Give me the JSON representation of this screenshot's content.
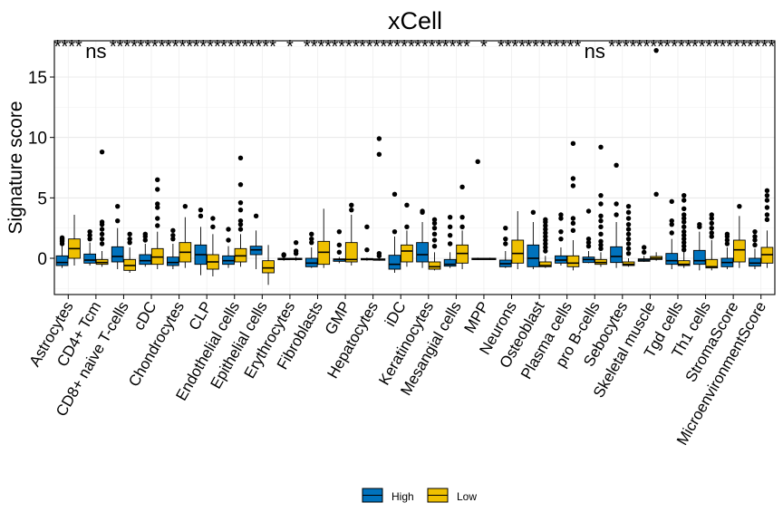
{
  "chart_data": {
    "type": "boxplot",
    "title": "xCell",
    "xlabel": "",
    "ylabel": "Signature score",
    "ylim": [
      -3,
      18
    ],
    "yticks": [
      0,
      5,
      10,
      15
    ],
    "grid": true,
    "legend": {
      "placement": "bottom",
      "entries": [
        "High",
        "Low"
      ]
    },
    "colors": {
      "High": "#0072BD",
      "Low": "#EFC000"
    },
    "categories": [
      "Astrocytes",
      "CD4+ Tcm",
      "CD8+ naive T-cells",
      "cDC",
      "Chondrocytes",
      "CLP",
      "Endothelial cells",
      "Epithelial cells",
      "Erythrocytes",
      "Fibroblasts",
      "GMP",
      "Hepatocytes",
      "iDC",
      "Keratinocytes",
      "Mesangial cells",
      "MPP",
      "Neurons",
      "Osteoblast",
      "Plasma cells",
      "pro B-cells",
      "Sebocytes",
      "Skeletal muscle",
      "Tgd cells",
      "Th1 cells",
      "StromaScore",
      "MicroenvironmentScore"
    ],
    "significance": [
      "****",
      "ns",
      "****",
      "****",
      "****",
      "****",
      "****",
      "****",
      "*",
      "****",
      "****",
      "****",
      "****",
      "****",
      "****",
      "*",
      "****",
      "****",
      "****",
      "ns",
      "****",
      "****",
      "****",
      "****",
      "****",
      "****"
    ],
    "series": [
      {
        "name": "High",
        "boxes": [
          {
            "min": -0.8,
            "q1": -0.6,
            "median": -0.35,
            "q3": 0.2,
            "max": 1.0,
            "outliers": [
              1.2,
              1.4,
              1.5,
              1.6,
              1.7
            ]
          },
          {
            "min": -0.6,
            "q1": -0.4,
            "median": -0.15,
            "q3": 0.35,
            "max": 1.3,
            "outliers": [
              1.6,
              1.9,
              2.2
            ]
          },
          {
            "min": -0.9,
            "q1": -0.3,
            "median": 0.15,
            "q3": 0.95,
            "max": 2.5,
            "outliers": [
              3.1,
              4.3
            ]
          },
          {
            "min": -0.7,
            "q1": -0.5,
            "median": -0.2,
            "q3": 0.3,
            "max": 1.2,
            "outliers": [
              1.5,
              1.8,
              2.0
            ]
          },
          {
            "min": -0.9,
            "q1": -0.6,
            "median": -0.35,
            "q3": 0.1,
            "max": 1.2,
            "outliers": [
              1.6,
              1.9,
              2.3
            ]
          },
          {
            "min": -1.4,
            "q1": -0.5,
            "median": 0.3,
            "q3": 1.1,
            "max": 2.6,
            "outliers": [
              3.5,
              4.0
            ]
          },
          {
            "min": -0.8,
            "q1": -0.5,
            "median": -0.2,
            "q3": 0.2,
            "max": 1.0,
            "outliers": [
              1.5,
              2.4
            ]
          },
          {
            "min": -0.9,
            "q1": 0.3,
            "median": 0.7,
            "q3": 1.0,
            "max": 2.3,
            "outliers": [
              3.5
            ]
          },
          {
            "min": -0.2,
            "q1": -0.12,
            "median": -0.05,
            "q3": 0.0,
            "max": 0.1,
            "outliers": [
              0.25,
              0.3
            ]
          },
          {
            "min": -0.8,
            "q1": -0.7,
            "median": -0.4,
            "q3": 0.0,
            "max": 0.9,
            "outliers": [
              1.3,
              1.6,
              2.0
            ]
          },
          {
            "min": -0.4,
            "q1": -0.25,
            "median": -0.1,
            "q3": -0.05,
            "max": 0.1,
            "outliers": [
              0.5,
              1.1,
              2.2
            ]
          },
          {
            "min": -0.2,
            "q1": -0.12,
            "median": -0.06,
            "q3": -0.02,
            "max": 0.05,
            "outliers": [
              0.7,
              2.6
            ]
          },
          {
            "min": -1.2,
            "q1": -0.9,
            "median": -0.5,
            "q3": 0.25,
            "max": 1.8,
            "outliers": [
              2.2,
              5.3
            ]
          },
          {
            "min": -0.8,
            "q1": -0.3,
            "median": 0.3,
            "q3": 1.3,
            "max": 3.0,
            "outliers": [
              3.8,
              3.9
            ]
          },
          {
            "min": -0.8,
            "q1": -0.65,
            "median": -0.5,
            "q3": -0.1,
            "max": 0.5,
            "outliers": [
              1.2,
              1.9,
              2.6,
              3.4
            ]
          },
          {
            "min": -0.15,
            "q1": -0.1,
            "median": -0.05,
            "q3": 0.0,
            "max": 0.05,
            "outliers": [
              8.0
            ]
          },
          {
            "min": -0.8,
            "q1": -0.7,
            "median": -0.45,
            "q3": -0.15,
            "max": 0.6,
            "outliers": [
              1.2,
              1.6,
              2.5
            ]
          },
          {
            "min": -0.9,
            "q1": -0.7,
            "median": 0.0,
            "q3": 1.1,
            "max": 3.0,
            "outliers": [
              3.8
            ]
          },
          {
            "min": -0.6,
            "q1": -0.4,
            "median": -0.15,
            "q3": 0.2,
            "max": 0.9,
            "outliers": [
              1.6,
              2.2,
              3.3,
              3.6
            ]
          },
          {
            "min": -0.4,
            "q1": -0.35,
            "median": -0.1,
            "q3": 0.1,
            "max": 0.6,
            "outliers": [
              1.0,
              1.3,
              1.6,
              3.9
            ]
          },
          {
            "min": -0.8,
            "q1": -0.35,
            "median": 0.15,
            "q3": 0.95,
            "max": 3.0,
            "outliers": [
              3.6,
              4.5,
              7.7
            ]
          },
          {
            "min": -0.3,
            "q1": -0.25,
            "median": -0.15,
            "q3": -0.05,
            "max": 0.2,
            "outliers": [
              0.5,
              0.9
            ]
          },
          {
            "min": -0.9,
            "q1": -0.5,
            "median": -0.2,
            "q3": 0.4,
            "max": 1.6,
            "outliers": [
              2.1,
              2.8,
              3.1,
              4.7
            ]
          },
          {
            "min": -1.0,
            "q1": -0.5,
            "median": -0.2,
            "q3": 0.65,
            "max": 2.2,
            "outliers": [
              2.6,
              2.8
            ]
          },
          {
            "min": -0.9,
            "q1": -0.7,
            "median": -0.35,
            "q3": 0.0,
            "max": 0.9,
            "outliers": [
              1.2,
              1.5,
              1.8,
              2.0
            ]
          },
          {
            "min": -0.9,
            "q1": -0.65,
            "median": -0.4,
            "q3": 0.0,
            "max": 0.8,
            "outliers": [
              1.1,
              1.5,
              1.8,
              2.2
            ]
          }
        ]
      },
      {
        "name": "Low",
        "boxes": [
          {
            "min": -0.6,
            "q1": 0.0,
            "median": 0.8,
            "q3": 1.6,
            "max": 3.6,
            "outliers": []
          },
          {
            "min": -0.7,
            "q1": -0.5,
            "median": -0.35,
            "q3": -0.1,
            "max": 0.6,
            "outliers": [
              1.2,
              1.6,
              2.0,
              2.4,
              2.8,
              3.0,
              8.8
            ]
          },
          {
            "min": -1.2,
            "q1": -1.0,
            "median": -0.6,
            "q3": -0.1,
            "max": 0.9,
            "outliers": [
              1.3,
              1.6,
              2.0
            ]
          },
          {
            "min": -0.9,
            "q1": -0.5,
            "median": 0.1,
            "q3": 0.8,
            "max": 2.2,
            "outliers": [
              2.7,
              3.3,
              4.2,
              4.5,
              5.7,
              6.5
            ]
          },
          {
            "min": -0.8,
            "q1": -0.3,
            "median": 0.5,
            "q3": 1.3,
            "max": 3.4,
            "outliers": [
              4.3
            ]
          },
          {
            "min": -1.5,
            "q1": -0.9,
            "median": -0.3,
            "q3": 0.3,
            "max": 2.0,
            "outliers": [
              2.6,
              3.3
            ]
          },
          {
            "min": -0.7,
            "q1": -0.3,
            "median": 0.2,
            "q3": 0.8,
            "max": 2.0,
            "outliers": [
              2.4,
              2.8,
              3.1,
              4.0,
              4.6,
              6.1,
              8.3
            ]
          },
          {
            "min": -2.2,
            "q1": -1.2,
            "median": -0.8,
            "q3": -0.2,
            "max": 1.1,
            "outliers": []
          },
          {
            "min": -0.2,
            "q1": -0.1,
            "median": -0.05,
            "q3": 0.0,
            "max": 0.1,
            "outliers": [
              0.4,
              0.6,
              1.3
            ]
          },
          {
            "min": -0.8,
            "q1": -0.5,
            "median": 0.5,
            "q3": 1.4,
            "max": 4.1,
            "outliers": []
          },
          {
            "min": -0.6,
            "q1": -0.3,
            "median": -0.1,
            "q3": 1.3,
            "max": 3.6,
            "outliers": [
              4.0,
              4.4
            ]
          },
          {
            "min": -0.2,
            "q1": -0.15,
            "median": -0.1,
            "q3": -0.05,
            "max": 0.05,
            "outliers": [
              0.2,
              0.4,
              8.6,
              9.9
            ]
          },
          {
            "min": -0.7,
            "q1": -0.3,
            "median": 0.6,
            "q3": 1.1,
            "max": 2.3,
            "outliers": [
              2.6,
              4.4
            ]
          },
          {
            "min": -1.0,
            "q1": -0.9,
            "median": -0.7,
            "q3": -0.3,
            "max": 0.5,
            "outliers": [
              1.0,
              1.5,
              2.0,
              2.5,
              2.9,
              3.2
            ]
          },
          {
            "min": -0.9,
            "q1": -0.4,
            "median": 0.4,
            "q3": 1.1,
            "max": 2.3,
            "outliers": [
              2.6,
              3.4,
              5.9
            ]
          },
          {
            "min": -0.15,
            "q1": -0.1,
            "median": -0.05,
            "q3": 0.0,
            "max": 0.05,
            "outliers": []
          },
          {
            "min": -0.9,
            "q1": -0.4,
            "median": 0.4,
            "q3": 1.5,
            "max": 3.9,
            "outliers": []
          },
          {
            "min": -0.8,
            "q1": -0.7,
            "median": -0.6,
            "q3": -0.3,
            "max": 0.2,
            "outliers": [
              0.6,
              0.9,
              1.2,
              1.5,
              1.8,
              2.1,
              2.4,
              2.7,
              3.0,
              3.2
            ]
          },
          {
            "min": -1.0,
            "q1": -0.7,
            "median": -0.4,
            "q3": 0.2,
            "max": 1.5,
            "outliers": [
              2.3,
              2.9,
              3.3,
              6.0,
              6.6,
              9.5
            ]
          },
          {
            "min": -0.7,
            "q1": -0.5,
            "median": -0.35,
            "q3": -0.1,
            "max": 0.5,
            "outliers": [
              0.8,
              1.1,
              1.4,
              2.0,
              2.6,
              3.1,
              3.5,
              4.5,
              5.2,
              9.2
            ]
          },
          {
            "min": -0.7,
            "q1": -0.6,
            "median": -0.5,
            "q3": -0.3,
            "max": 0.0,
            "outliers": [
              0.4,
              0.8,
              1.2,
              1.6,
              2.0,
              2.4,
              2.8,
              3.3,
              3.8,
              4.3
            ]
          },
          {
            "min": -0.2,
            "q1": -0.1,
            "median": 0.0,
            "q3": 0.15,
            "max": 0.5,
            "outliers": [
              5.3,
              17.2
            ]
          },
          {
            "min": -0.8,
            "q1": -0.6,
            "median": -0.5,
            "q3": -0.2,
            "max": 0.5,
            "outliers": [
              0.7,
              1.0,
              1.3,
              1.6,
              1.9,
              2.2,
              2.6,
              3.0,
              3.3,
              3.6,
              4.1,
              4.8,
              5.2
            ]
          },
          {
            "min": -1.0,
            "q1": -0.8,
            "median": -0.7,
            "q3": -0.1,
            "max": 1.5,
            "outliers": [
              1.8,
              2.1,
              2.5,
              2.9,
              3.3,
              3.6
            ]
          },
          {
            "min": -0.8,
            "q1": -0.3,
            "median": 0.7,
            "q3": 1.5,
            "max": 3.5,
            "outliers": [
              4.3
            ]
          },
          {
            "min": -0.8,
            "q1": -0.4,
            "median": 0.3,
            "q3": 0.9,
            "max": 2.3,
            "outliers": [
              3.2,
              3.6,
              4.2,
              4.8,
              5.2,
              5.6
            ]
          }
        ]
      }
    ]
  }
}
